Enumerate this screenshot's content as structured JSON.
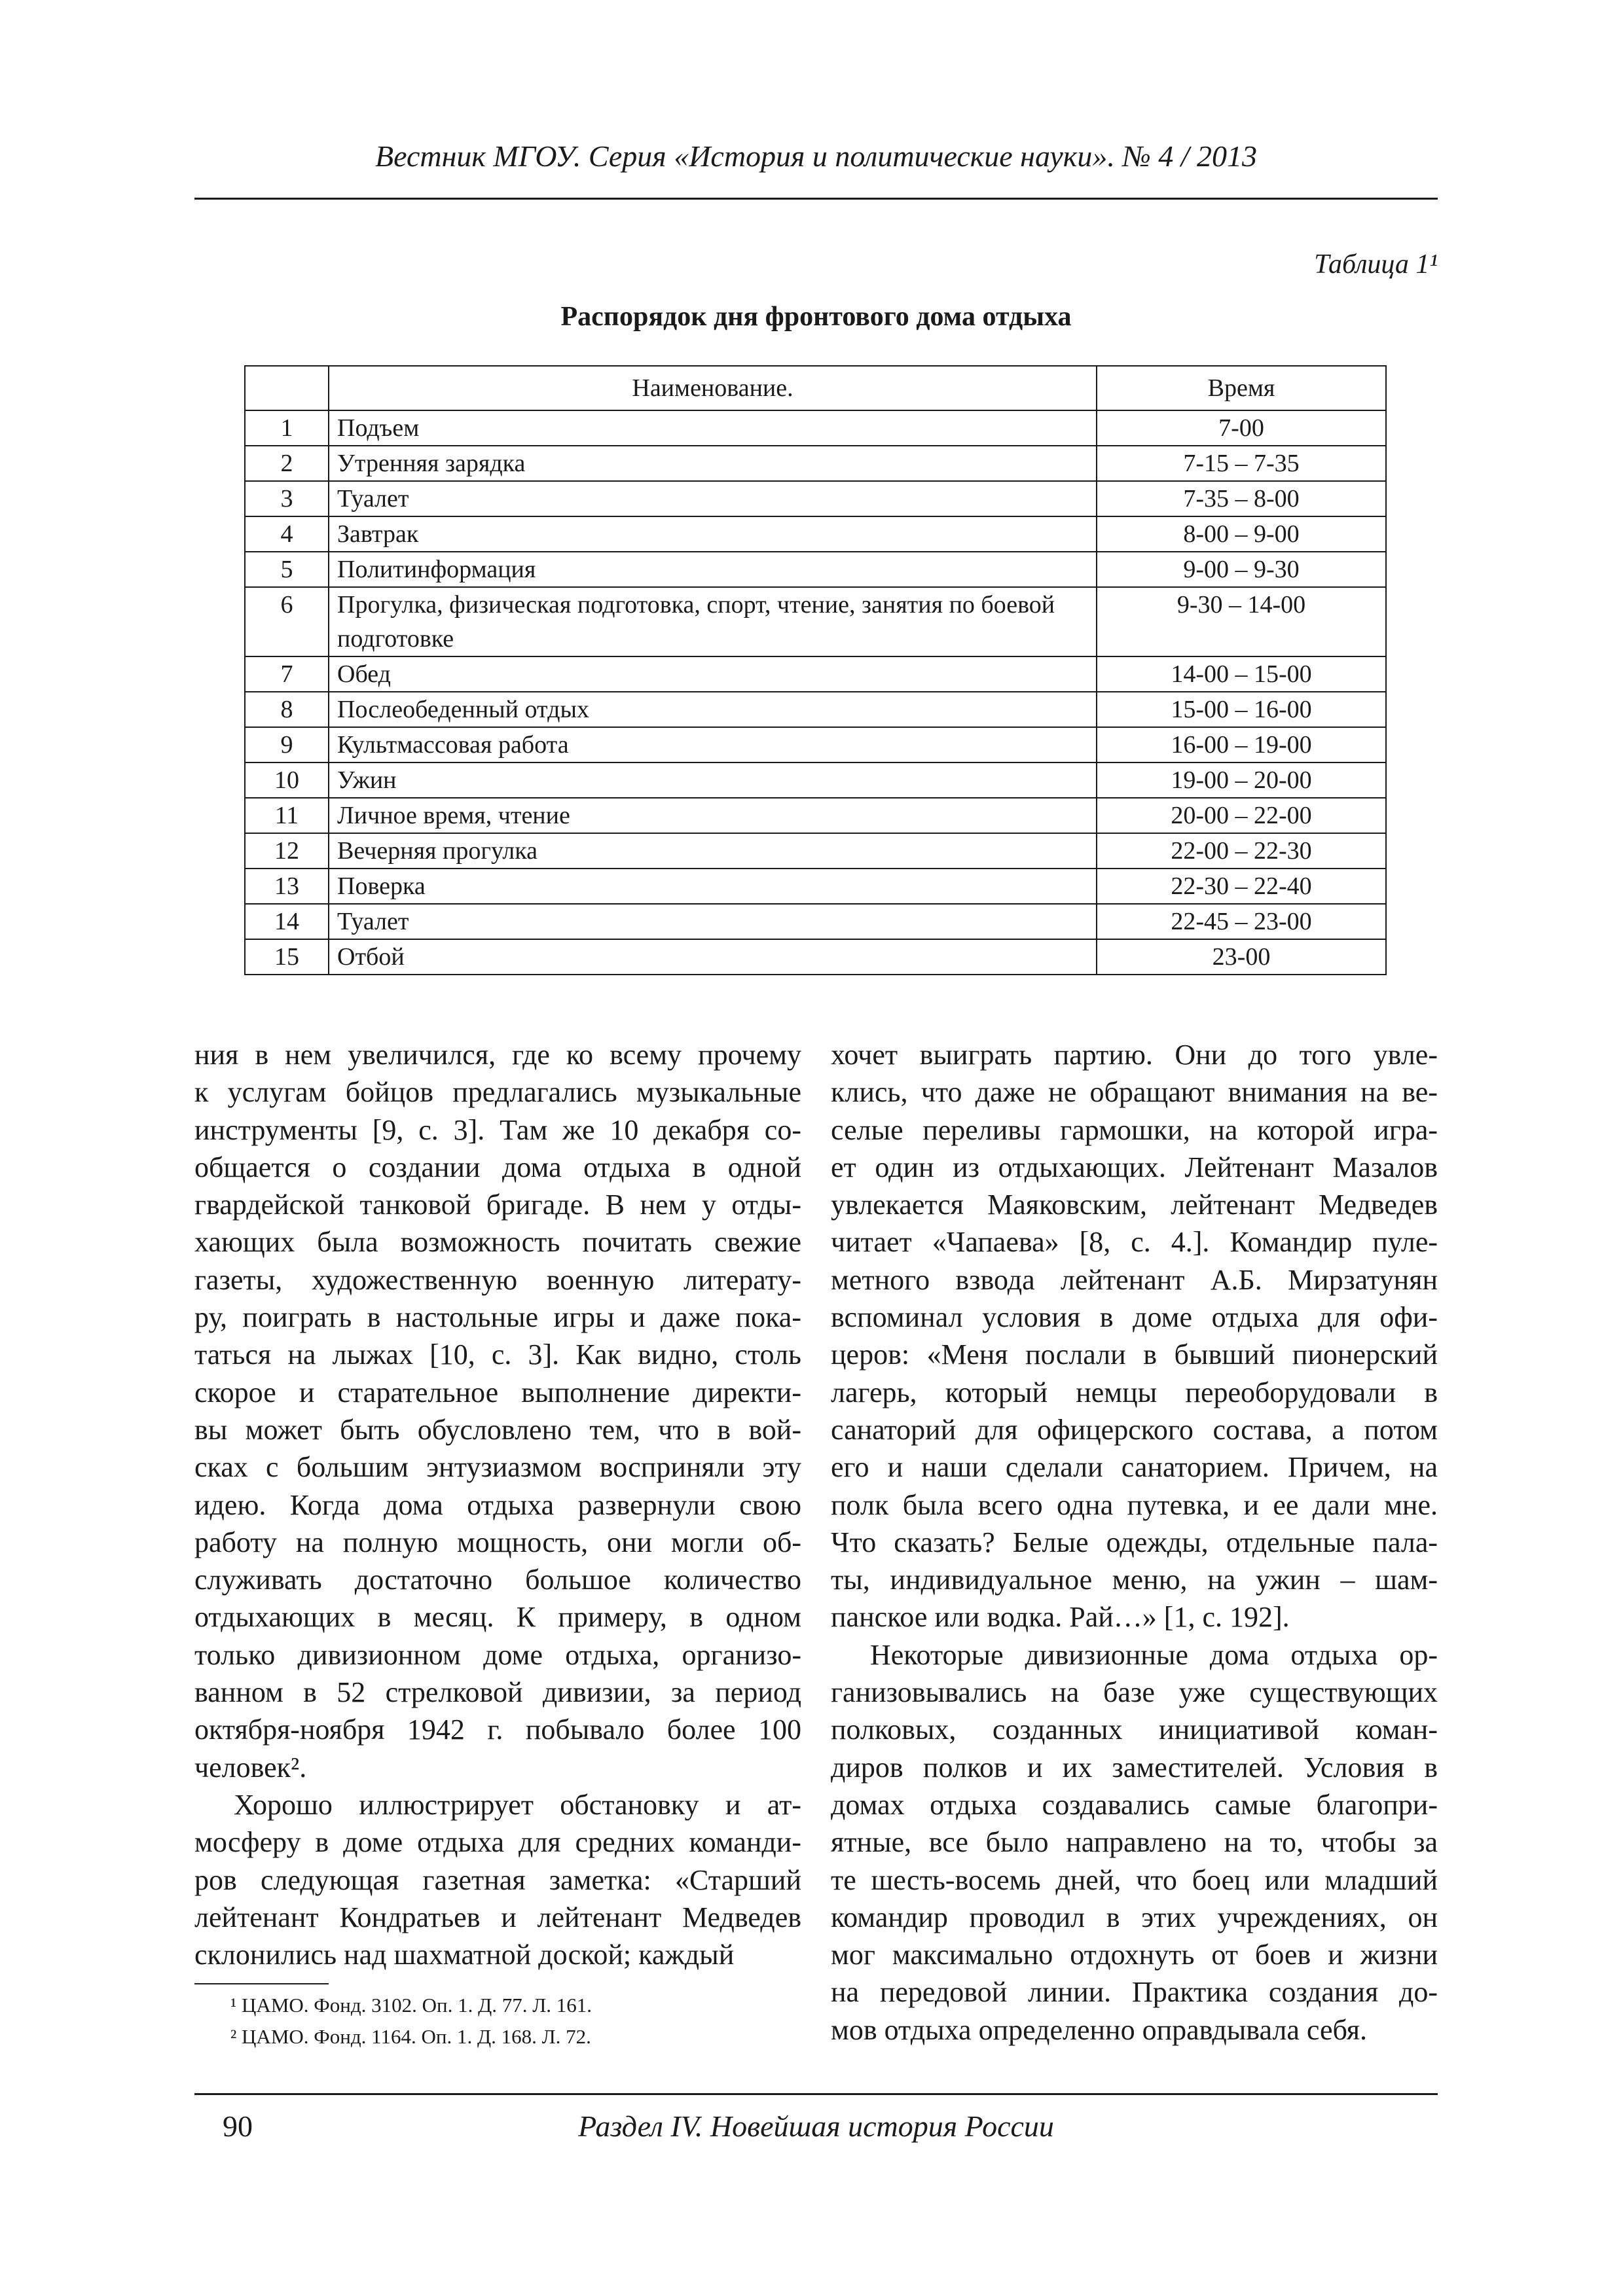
{
  "header": {
    "running_title": "Вестник МГОУ. Серия «История и политические науки». № 4 / 2013"
  },
  "table": {
    "label": "Таблица 1¹",
    "title": "Распорядок дня фронтового дома отдыха",
    "columns": [
      "",
      "Наименование.",
      "Время"
    ],
    "rows": [
      {
        "n": "1",
        "name": "Подъем",
        "time": "7-00"
      },
      {
        "n": "2",
        "name": "Утренняя зарядка",
        "time": "7-15 – 7-35"
      },
      {
        "n": "3",
        "name": "Туалет",
        "time": "7-35 – 8-00"
      },
      {
        "n": "4",
        "name": "Завтрак",
        "time": "8-00 – 9-00"
      },
      {
        "n": "5",
        "name": "Политинформация",
        "time": "9-00 – 9-30"
      },
      {
        "n": "6",
        "name": "Прогулка, физическая подготовка, спорт, чтение, занятия по боевой подготовке",
        "time": "9-30 – 14-00"
      },
      {
        "n": "7",
        "name": "Обед",
        "time": "14-00 – 15-00"
      },
      {
        "n": "8",
        "name": "Послеобеденный отдых",
        "time": "15-00 – 16-00"
      },
      {
        "n": "9",
        "name": "Культмассовая работа",
        "time": "16-00 – 19-00"
      },
      {
        "n": "10",
        "name": "Ужин",
        "time": "19-00 – 20-00"
      },
      {
        "n": "11",
        "name": "Личное время, чтение",
        "time": "20-00 – 22-00"
      },
      {
        "n": "12",
        "name": "Вечерняя прогулка",
        "time": "22-00 – 22-30"
      },
      {
        "n": "13",
        "name": "Поверка",
        "time": "22-30 – 22-40"
      },
      {
        "n": "14",
        "name": "Туалет",
        "time": "22-45 – 23-00"
      },
      {
        "n": "15",
        "name": "Отбой",
        "time": "23-00"
      }
    ]
  },
  "body": {
    "left_lines": [
      "ния в нем увеличился, где ко всему прочему",
      "к услугам бойцов предлагались музыкальные",
      "инструменты [9, с. 3]. Там же 10 декабря со-",
      "общается о создании дома отдыха в одной",
      "гвардейской танковой бригаде. В нем у отды-",
      "хающих была возможность почитать свежие",
      "газеты, художественную военную литерату-",
      "ру, поиграть в настольные игры и даже пока-",
      "таться на лыжах [10, с. 3]. Как видно, столь",
      "скорое и старательное выполнение директи-",
      "вы может быть обусловлено тем, что в вой-",
      "сках с большим энтузиазмом восприняли эту",
      "идею. Когда дома отдыха развернули свою",
      "работу на полную мощность, они могли об-",
      "служивать достаточно большое количество",
      "отдыхающих в месяц. К примеру, в одном",
      "только дивизионном доме отдыха, организо-",
      "ванном в 52 стрелковой дивизии, за период",
      "октября-ноября 1942 г. побывало более 100",
      "человек².",
      "Хорошо иллюстрирует обстановку и ат-",
      "мосферу в доме отдыха для средних команди-",
      "ров следующая газетная заметка: «Старший",
      "лейтенант Кондратьев и лейтенант Медведев",
      "склонились над шахматной доской; каждый"
    ],
    "right_lines": [
      "хочет выиграть партию. Они до того увле-",
      "клись, что даже не обращают внимания на ве-",
      "селые переливы гармошки, на которой игра-",
      "ет один из отдыхающих. Лейтенант Мазалов",
      "увлекается Маяковским, лейтенант Медведев",
      "читает «Чапаева» [8, с. 4.]. Командир пуле-",
      "метного взвода лейтенант А.Б. Мирзатунян",
      "вспоминал условия в доме отдыха для офи-",
      "церов: «Меня послали в бывший пионерский",
      "лагерь, который немцы переоборудовали в",
      "санаторий для офицерского состава, а потом",
      "его и наши сделали санаторием. Причем, на",
      "полк была всего одна путевка, и ее дали мне.",
      "Что сказать? Белые одежды, отдельные пала-",
      "ты, индивидуальное меню, на ужин – шам-",
      "панское или водка. Рай…» [1, с. 192].",
      "Некоторые дивизионные дома отдыха ор-",
      "ганизовывались на базе уже существующих",
      "полковых, созданных инициативой коман-",
      "диров полков и их заместителей. Условия в",
      "домах отдыха создавались самые благопри-",
      "ятные, все было направлено на то, чтобы за",
      "те шесть-восемь дней, что боец или младший",
      "командир проводил в этих учреждениях, он",
      "мог максимально отдохнуть от боев и жизни",
      "на передовой линии. Практика создания до-",
      "мов отдыха определенно оправдывала себя."
    ]
  },
  "footnotes": [
    "¹ ЦАМО. Фонд. 3102. Оп. 1. Д. 77. Л. 161.",
    "² ЦАМО. Фонд. 1164. Оп. 1. Д. 168. Л. 72."
  ],
  "footer": {
    "page_number": "90",
    "section": "Раздел IV. Новейшая история России"
  }
}
